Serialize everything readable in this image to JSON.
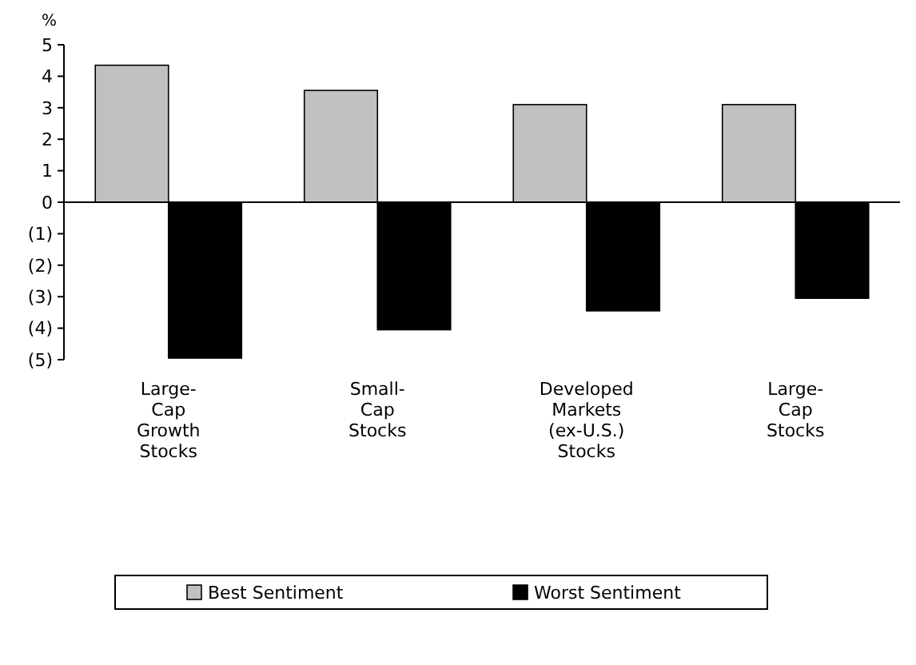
{
  "chart_data": {
    "type": "bar",
    "ylabel": "%",
    "categories": [
      "Large-Cap Growth Stocks",
      "Small-Cap Stocks",
      "Developed Markets (ex-U.S.) Stocks",
      "Large-Cap Stocks"
    ],
    "series": [
      {
        "name": "Best Sentiment",
        "color": "#c0c0c0",
        "values": [
          4.35,
          3.55,
          3.1,
          3.1
        ]
      },
      {
        "name": "Worst Sentiment",
        "color": "#000000",
        "values": [
          -4.95,
          -4.05,
          -3.45,
          -3.05
        ]
      }
    ],
    "ylim": [
      -5,
      5
    ],
    "yticks": [
      5,
      4,
      3,
      2,
      1,
      0,
      {
        "value": -1,
        "label": "(1)"
      },
      {
        "value": -2,
        "label": "(2)"
      },
      {
        "value": -3,
        "label": "(3)"
      },
      {
        "value": -4,
        "label": "(4)"
      },
      {
        "value": -5,
        "label": "(5)"
      }
    ],
    "legend": "bottom"
  }
}
